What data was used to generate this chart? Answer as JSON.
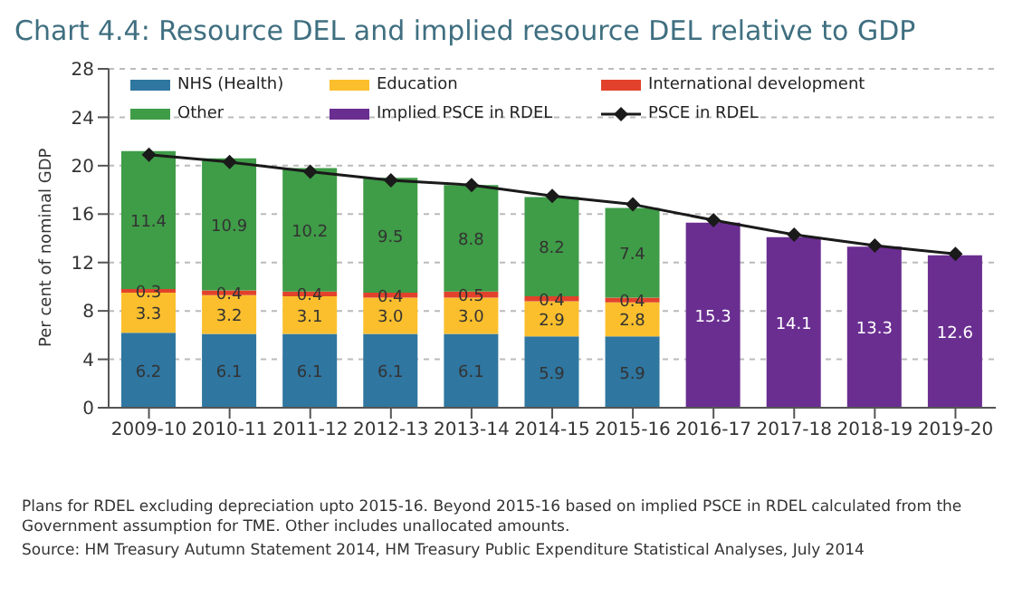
{
  "chart_data": {
    "type": "bar",
    "title": "Chart 4.4: Resource DEL and implied resource DEL relative to GDP",
    "ylabel": "Per cent of nominal GDP",
    "categories": [
      "2009-10",
      "2010-11",
      "2011-12",
      "2012-13",
      "2013-14",
      "2014-15",
      "2015-16",
      "2016-17",
      "2017-18",
      "2018-19",
      "2019-20"
    ],
    "stacked": true,
    "ylim": [
      0,
      28
    ],
    "yticks": [
      0,
      4,
      8,
      12,
      16,
      20,
      24,
      28
    ],
    "grid": "y",
    "legend": "top",
    "series": [
      {
        "name": "NHS (Health)",
        "color": "#2f76a0",
        "values": [
          6.2,
          6.1,
          6.1,
          6.1,
          6.1,
          5.9,
          5.9,
          null,
          null,
          null,
          null
        ],
        "value_labels": [
          "6.2",
          "6.1",
          "6.1",
          "6.1",
          "6.1",
          "5.9",
          "5.9",
          null,
          null,
          null,
          null
        ]
      },
      {
        "name": "Education",
        "color": "#fbbf2d",
        "values": [
          3.3,
          3.2,
          3.1,
          3.0,
          3.0,
          2.9,
          2.8,
          null,
          null,
          null,
          null
        ],
        "value_labels": [
          "3.3",
          "3.2",
          "3.1",
          "3.0",
          "3.0",
          "2.9",
          "2.8",
          null,
          null,
          null,
          null
        ]
      },
      {
        "name": "International development",
        "color": "#e2422b",
        "values": [
          0.3,
          0.4,
          0.4,
          0.4,
          0.5,
          0.4,
          0.4,
          null,
          null,
          null,
          null
        ],
        "value_labels": [
          "0.3",
          "0.4",
          "0.4",
          "0.4",
          "0.5",
          "0.4",
          "0.4",
          null,
          null,
          null,
          null
        ]
      },
      {
        "name": "Other",
        "color": "#3f9c47",
        "values": [
          11.4,
          10.9,
          10.2,
          9.5,
          8.8,
          8.2,
          7.4,
          null,
          null,
          null,
          null
        ],
        "value_labels": [
          "11.4",
          "10.9",
          "10.2",
          "9.5",
          "8.8",
          "8.2",
          "7.4",
          null,
          null,
          null,
          null
        ]
      },
      {
        "name": "Implied PSCE in RDEL",
        "color": "#6a2e91",
        "values": [
          null,
          null,
          null,
          null,
          null,
          null,
          null,
          15.3,
          14.1,
          13.3,
          12.6
        ],
        "value_labels": [
          null,
          null,
          null,
          null,
          null,
          null,
          null,
          "15.3",
          "14.1",
          "13.3",
          "12.6"
        ]
      },
      {
        "name": "PSCE in RDEL",
        "type": "line",
        "color": "#1a1a1a",
        "marker": "diamond",
        "values": [
          20.9,
          20.3,
          19.5,
          18.8,
          18.4,
          17.5,
          16.8,
          15.5,
          14.3,
          13.4,
          12.7
        ]
      }
    ],
    "annotations": [
      "Plans for RDEL excluding depreciation upto 2015-16.  Beyond 2015-16  based on implied PSCE in RDEL calculated from the Government assumption for TME. Other includes unallocated amounts.",
      "Source: HM Treasury Autumn Statement 2014, HM Treasury Public Expenditure Statistical Analyses, July 2014"
    ]
  }
}
